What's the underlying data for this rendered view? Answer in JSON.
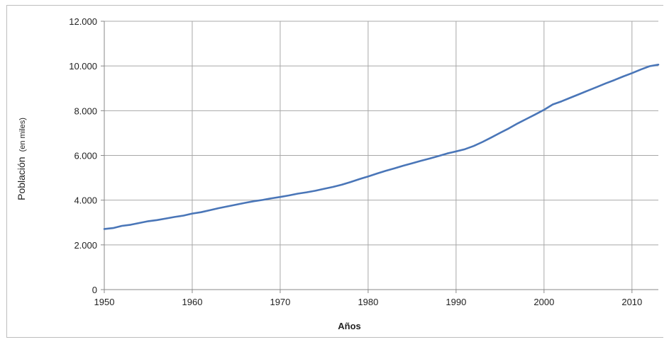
{
  "chart_data": {
    "type": "line",
    "title": "",
    "xlabel": "Años",
    "ylabel_main": "Población",
    "ylabel_sub": "(en miles)",
    "xlim": [
      1950,
      2013
    ],
    "ylim": [
      0,
      12000
    ],
    "x_ticks": [
      1950,
      1960,
      1970,
      1980,
      1990,
      2000,
      2010
    ],
    "x_tick_labels": [
      "1950",
      "1960",
      "1970",
      "1980",
      "1990",
      "2000",
      "2010"
    ],
    "y_ticks": [
      0,
      2000,
      4000,
      6000,
      8000,
      10000,
      12000
    ],
    "y_tick_labels": [
      "0",
      "2.000",
      "4.000",
      "6.000",
      "8.000",
      "10.000",
      "12.000"
    ],
    "grid": true,
    "legend": "none",
    "series_color": "#4a76b8",
    "series": [
      {
        "x": [
          1950,
          1951,
          1952,
          1953,
          1954,
          1955,
          1956,
          1957,
          1958,
          1959,
          1960,
          1961,
          1962,
          1963,
          1964,
          1965,
          1966,
          1967,
          1968,
          1969,
          1970,
          1971,
          1972,
          1973,
          1974,
          1975,
          1976,
          1977,
          1978,
          1979,
          1980,
          1981,
          1982,
          1983,
          1984,
          1985,
          1986,
          1987,
          1988,
          1989,
          1990,
          1991,
          1992,
          1993,
          1994,
          1995,
          1996,
          1997,
          1998,
          1999,
          2000,
          2001,
          2002,
          2003,
          2004,
          2005,
          2006,
          2007,
          2008,
          2009,
          2010,
          2011,
          2012,
          2013
        ],
        "y": [
          2710,
          2750,
          2850,
          2900,
          2980,
          3060,
          3110,
          3180,
          3250,
          3310,
          3400,
          3460,
          3550,
          3640,
          3720,
          3800,
          3880,
          3950,
          4010,
          4080,
          4140,
          4210,
          4290,
          4350,
          4420,
          4510,
          4590,
          4690,
          4810,
          4940,
          5060,
          5190,
          5310,
          5420,
          5540,
          5650,
          5760,
          5860,
          5970,
          6090,
          6180,
          6280,
          6420,
          6600,
          6800,
          7010,
          7210,
          7430,
          7630,
          7830,
          8040,
          8280,
          8420,
          8580,
          8740,
          8900,
          9060,
          9220,
          9370,
          9530,
          9680,
          9840,
          9990,
          10060
        ]
      }
    ]
  }
}
